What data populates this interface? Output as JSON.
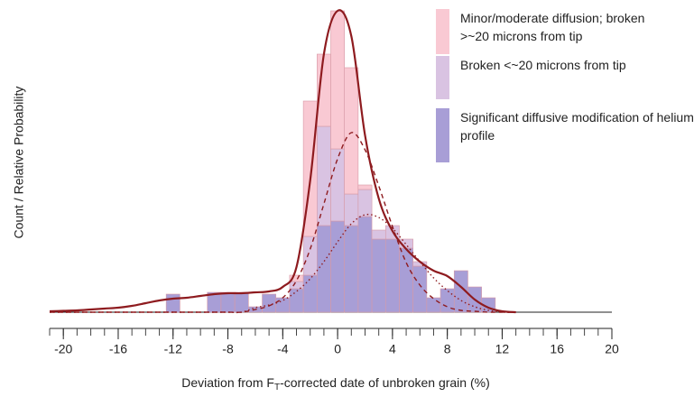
{
  "chart_data": {
    "type": "histogram",
    "xlabel": [
      "Deviation from F",
      "T",
      "-corrected date of unbroken grain (%)"
    ],
    "ylabel": "Count / Relative Probability",
    "xlim": [
      -21,
      20
    ],
    "ylim": [
      0,
      34
    ],
    "xticks": [
      -20,
      -16,
      -12,
      -8,
      -4,
      0,
      4,
      8,
      12,
      16,
      20
    ],
    "xminor": [
      -21,
      -20,
      -19,
      -18,
      -17,
      -16,
      -15,
      -14,
      -13,
      -12,
      -11,
      -10,
      -9,
      -8,
      -7,
      -6,
      -5,
      -4,
      -3,
      -2,
      -1,
      0,
      1,
      2,
      3,
      4,
      5,
      6,
      7,
      8,
      9,
      10,
      11,
      12,
      13,
      14,
      15,
      16,
      17,
      18,
      19,
      20
    ],
    "bins": [
      -12.5,
      -11.5,
      -10.5,
      -9.5,
      -8.5,
      -7.5,
      -6.5,
      -5.5,
      -4.5,
      -3.5,
      -2.5,
      -1.5,
      -0.5,
      0.5,
      1.5,
      2.5,
      3.5,
      4.5,
      5.5,
      6.5,
      7.5,
      8.5,
      9.5,
      10.5,
      11.5
    ],
    "legend": "top-right",
    "series": [
      {
        "name": "Minor/moderate diffusion; broken >~20 microns from tip",
        "color": "#f9c9d3",
        "values": [
          0,
          0,
          0,
          0,
          0,
          0,
          0,
          0,
          0,
          0.7,
          15,
          8,
          15.3,
          14,
          0.5,
          0,
          0,
          0,
          0,
          0,
          0,
          0,
          0,
          0
        ]
      },
      {
        "name": "Broken <~20 microns from tip",
        "color": "#d9c3e2",
        "values": [
          0,
          0,
          0,
          0,
          0,
          0,
          0,
          0,
          0,
          0.8,
          4.3,
          11,
          8,
          3.5,
          3,
          1,
          1.5,
          1,
          0.5,
          0,
          0,
          0,
          0,
          0
        ]
      },
      {
        "name": "Significant diffusive modification of helium profile",
        "color": "#a89ed6",
        "values": [
          2,
          0,
          0,
          2.2,
          2.2,
          2.2,
          0.6,
          2,
          1.6,
          2.6,
          4.1,
          9.6,
          10.1,
          9.6,
          10.6,
          8.1,
          8.1,
          7.1,
          5.1,
          1.6,
          2.6,
          4.6,
          2.8,
          1.6
        ]
      }
    ],
    "lines": {
      "color": "#8e1b1f",
      "x": [
        -21,
        -20,
        -19,
        -18,
        -17,
        -16,
        -15,
        -14,
        -13,
        -12,
        -11,
        -10,
        -9,
        -8,
        -7,
        -6,
        -5,
        -4,
        -3,
        -2,
        -1,
        0,
        1,
        2,
        3,
        4,
        5,
        6,
        7,
        8,
        9,
        10,
        11,
        12,
        13
      ],
      "series": [
        {
          "style": "solid",
          "values": [
            0.1,
            0.15,
            0.2,
            0.3,
            0.4,
            0.5,
            0.7,
            1,
            1.3,
            1.5,
            1.6,
            1.8,
            2,
            2.1,
            2.1,
            2.2,
            2.3,
            2.8,
            5,
            14.6,
            28.6,
            33.4,
            30.6,
            19.6,
            12.6,
            9,
            7,
            5.6,
            4.6,
            4,
            2.8,
            1.4,
            0.5,
            0.1,
            0
          ]
        },
        {
          "style": "dashed",
          "values": [
            0,
            0,
            0,
            0,
            0,
            0,
            0,
            0,
            0,
            0,
            0,
            0,
            0,
            0,
            0,
            0.3,
            0.7,
            1.6,
            3.5,
            7,
            12,
            17,
            19.9,
            18,
            14,
            9.5,
            5.5,
            3,
            1.5,
            0.6,
            0.2,
            0.1,
            0,
            0,
            0
          ]
        },
        {
          "style": "dotted",
          "values": [
            0,
            0,
            0,
            0,
            0,
            0,
            0,
            0,
            0,
            0,
            0,
            0,
            0,
            0,
            0,
            0.5,
            0.8,
            1.3,
            2.3,
            3.7,
            5.6,
            7.8,
            9.8,
            10.8,
            10.5,
            9.3,
            7.5,
            5.6,
            3.8,
            2.4,
            1.3,
            0.6,
            0.2,
            0,
            0
          ]
        }
      ]
    }
  }
}
